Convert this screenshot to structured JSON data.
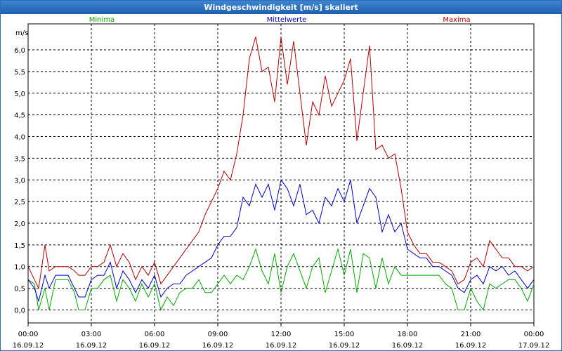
{
  "window": {
    "title": "Windgeschwindigkeit [m/s] skaliert"
  },
  "chart_data": {
    "type": "line",
    "title": "Windgeschwindigkeit [m/s] skaliert",
    "ylabel": "m/s",
    "xlabel": "",
    "ylim": [
      -0.3,
      6.6
    ],
    "xlim": [
      0,
      24
    ],
    "grid": true,
    "y_ticks": [
      {
        "value": 0.0,
        "label": "0,0"
      },
      {
        "value": 0.5,
        "label": "0,5"
      },
      {
        "value": 1.0,
        "label": "1,0"
      },
      {
        "value": 1.5,
        "label": "1,5"
      },
      {
        "value": 2.0,
        "label": "2,0"
      },
      {
        "value": 2.5,
        "label": "2,5"
      },
      {
        "value": 3.0,
        "label": "3,0"
      },
      {
        "value": 3.5,
        "label": "3,5"
      },
      {
        "value": 4.0,
        "label": "4,0"
      },
      {
        "value": 4.5,
        "label": "4,5"
      },
      {
        "value": 5.0,
        "label": "5,0"
      },
      {
        "value": 5.5,
        "label": "5,5"
      },
      {
        "value": 6.0,
        "label": "6,0"
      }
    ],
    "x_ticks": [
      {
        "value": 0,
        "time": "00:00",
        "date": "16.09.12"
      },
      {
        "value": 3,
        "time": "03:00",
        "date": "16.09.12"
      },
      {
        "value": 6,
        "time": "06:00",
        "date": "16.09.12"
      },
      {
        "value": 9,
        "time": "09:00",
        "date": "16.09.12"
      },
      {
        "value": 12,
        "time": "12:00",
        "date": "16.09.12"
      },
      {
        "value": 15,
        "time": "15:00",
        "date": "16.09.12"
      },
      {
        "value": 18,
        "time": "18:00",
        "date": "16.09.12"
      },
      {
        "value": 21,
        "time": "21:00",
        "date": "16.09.12"
      },
      {
        "value": 24,
        "time": "00:00",
        "date": "17.09.12"
      }
    ],
    "series": [
      {
        "name": "Minima",
        "color": "#00aa00",
        "legend_position": "left",
        "points": [
          [
            0,
            0.7
          ],
          [
            0.3,
            0.6
          ],
          [
            0.5,
            0.0
          ],
          [
            0.8,
            0.5
          ],
          [
            1.0,
            0.0
          ],
          [
            1.3,
            0.7
          ],
          [
            1.6,
            0.7
          ],
          [
            1.9,
            0.7
          ],
          [
            2.2,
            0.4
          ],
          [
            2.4,
            0.0
          ],
          [
            2.7,
            0.0
          ],
          [
            3.0,
            0.5
          ],
          [
            3.3,
            0.5
          ],
          [
            3.6,
            0.7
          ],
          [
            3.9,
            0.8
          ],
          [
            4.2,
            0.2
          ],
          [
            4.5,
            0.7
          ],
          [
            4.8,
            0.5
          ],
          [
            5.1,
            0.2
          ],
          [
            5.4,
            0.6
          ],
          [
            5.7,
            0.3
          ],
          [
            6.0,
            0.6
          ],
          [
            6.3,
            0.0
          ],
          [
            6.6,
            0.3
          ],
          [
            6.9,
            0.1
          ],
          [
            7.2,
            0.4
          ],
          [
            7.5,
            0.5
          ],
          [
            7.8,
            0.5
          ],
          [
            8.1,
            0.7
          ],
          [
            8.4,
            0.4
          ],
          [
            8.7,
            0.4
          ],
          [
            9.0,
            0.6
          ],
          [
            9.3,
            0.8
          ],
          [
            9.6,
            0.6
          ],
          [
            9.9,
            0.8
          ],
          [
            10.2,
            0.7
          ],
          [
            10.5,
            1.0
          ],
          [
            10.8,
            1.4
          ],
          [
            11.1,
            0.9
          ],
          [
            11.4,
            0.6
          ],
          [
            11.7,
            1.3
          ],
          [
            12.0,
            0.4
          ],
          [
            12.3,
            1.0
          ],
          [
            12.6,
            1.3
          ],
          [
            12.9,
            0.9
          ],
          [
            13.2,
            0.5
          ],
          [
            13.5,
            1.0
          ],
          [
            13.8,
            1.2
          ],
          [
            14.1,
            0.4
          ],
          [
            14.4,
            0.9
          ],
          [
            14.7,
            1.4
          ],
          [
            15.0,
            0.8
          ],
          [
            15.3,
            1.4
          ],
          [
            15.6,
            0.4
          ],
          [
            15.9,
            1.3
          ],
          [
            16.2,
            1.2
          ],
          [
            16.5,
            0.5
          ],
          [
            16.8,
            1.2
          ],
          [
            17.1,
            0.6
          ],
          [
            17.4,
            1.0
          ],
          [
            17.7,
            0.8
          ],
          [
            18.0,
            0.8
          ],
          [
            18.3,
            0.8
          ],
          [
            18.6,
            0.8
          ],
          [
            18.9,
            0.8
          ],
          [
            19.2,
            0.8
          ],
          [
            19.5,
            0.8
          ],
          [
            19.8,
            0.6
          ],
          [
            20.1,
            0.5
          ],
          [
            20.4,
            0.0
          ],
          [
            20.7,
            0.0
          ],
          [
            21.0,
            0.5
          ],
          [
            21.3,
            0.2
          ],
          [
            21.6,
            0.0
          ],
          [
            21.9,
            0.6
          ],
          [
            22.2,
            0.5
          ],
          [
            22.5,
            0.6
          ],
          [
            22.8,
            0.7
          ],
          [
            23.1,
            0.7
          ],
          [
            23.4,
            0.5
          ],
          [
            23.7,
            0.2
          ],
          [
            24.0,
            0.6
          ]
        ]
      },
      {
        "name": "Mittelwerte",
        "color": "#0000c8",
        "legend_position": "center",
        "points": [
          [
            0,
            0.7
          ],
          [
            0.3,
            0.5
          ],
          [
            0.5,
            0.2
          ],
          [
            0.8,
            0.8
          ],
          [
            1.0,
            0.5
          ],
          [
            1.3,
            0.8
          ],
          [
            1.6,
            0.8
          ],
          [
            1.9,
            0.8
          ],
          [
            2.2,
            0.5
          ],
          [
            2.4,
            0.3
          ],
          [
            2.7,
            0.3
          ],
          [
            3.0,
            0.7
          ],
          [
            3.3,
            0.8
          ],
          [
            3.6,
            0.8
          ],
          [
            3.9,
            1.1
          ],
          [
            4.2,
            0.5
          ],
          [
            4.5,
            0.9
          ],
          [
            4.8,
            0.7
          ],
          [
            5.1,
            0.4
          ],
          [
            5.4,
            0.7
          ],
          [
            5.7,
            0.5
          ],
          [
            6.0,
            0.8
          ],
          [
            6.3,
            0.3
          ],
          [
            6.6,
            0.5
          ],
          [
            6.9,
            0.6
          ],
          [
            7.2,
            0.6
          ],
          [
            7.5,
            0.8
          ],
          [
            7.8,
            0.9
          ],
          [
            8.1,
            1.0
          ],
          [
            8.4,
            1.1
          ],
          [
            8.7,
            1.2
          ],
          [
            9.0,
            1.5
          ],
          [
            9.3,
            1.7
          ],
          [
            9.6,
            1.7
          ],
          [
            9.9,
            1.9
          ],
          [
            10.2,
            2.6
          ],
          [
            10.5,
            2.4
          ],
          [
            10.8,
            2.9
          ],
          [
            11.1,
            2.6
          ],
          [
            11.4,
            2.9
          ],
          [
            11.7,
            2.3
          ],
          [
            12.0,
            3.0
          ],
          [
            12.3,
            2.8
          ],
          [
            12.6,
            2.4
          ],
          [
            12.9,
            2.9
          ],
          [
            13.2,
            2.2
          ],
          [
            13.5,
            2.3
          ],
          [
            13.8,
            2.0
          ],
          [
            14.1,
            2.6
          ],
          [
            14.4,
            2.4
          ],
          [
            14.7,
            2.8
          ],
          [
            15.0,
            2.5
          ],
          [
            15.3,
            3.0
          ],
          [
            15.6,
            2.0
          ],
          [
            15.9,
            2.4
          ],
          [
            16.2,
            2.8
          ],
          [
            16.5,
            2.6
          ],
          [
            16.8,
            1.8
          ],
          [
            17.1,
            2.2
          ],
          [
            17.4,
            1.8
          ],
          [
            17.7,
            2.0
          ],
          [
            18.0,
            1.4
          ],
          [
            18.3,
            1.3
          ],
          [
            18.6,
            1.2
          ],
          [
            18.9,
            1.2
          ],
          [
            19.2,
            1.0
          ],
          [
            19.5,
            1.0
          ],
          [
            19.8,
            0.9
          ],
          [
            20.1,
            0.8
          ],
          [
            20.4,
            0.5
          ],
          [
            20.7,
            0.4
          ],
          [
            21.0,
            0.7
          ],
          [
            21.3,
            0.8
          ],
          [
            21.6,
            0.6
          ],
          [
            21.9,
            1.0
          ],
          [
            22.2,
            0.9
          ],
          [
            22.5,
            1.0
          ],
          [
            22.8,
            0.8
          ],
          [
            23.1,
            0.9
          ],
          [
            23.4,
            0.7
          ],
          [
            23.7,
            0.5
          ],
          [
            24.0,
            0.7
          ]
        ]
      },
      {
        "name": "Maxima",
        "color": "#b40000",
        "legend_position": "right",
        "points": [
          [
            0,
            1.0
          ],
          [
            0.3,
            0.7
          ],
          [
            0.5,
            0.5
          ],
          [
            0.8,
            1.5
          ],
          [
            1.0,
            0.9
          ],
          [
            1.3,
            1.0
          ],
          [
            1.6,
            1.0
          ],
          [
            1.9,
            1.0
          ],
          [
            2.2,
            0.9
          ],
          [
            2.4,
            0.8
          ],
          [
            2.7,
            0.8
          ],
          [
            3.0,
            1.0
          ],
          [
            3.3,
            1.0
          ],
          [
            3.6,
            1.1
          ],
          [
            3.9,
            1.5
          ],
          [
            4.2,
            1.0
          ],
          [
            4.5,
            1.3
          ],
          [
            4.8,
            1.1
          ],
          [
            5.1,
            0.7
          ],
          [
            5.4,
            1.0
          ],
          [
            5.7,
            0.8
          ],
          [
            6.0,
            1.1
          ],
          [
            6.3,
            0.6
          ],
          [
            6.6,
            0.8
          ],
          [
            6.9,
            1.0
          ],
          [
            7.2,
            1.2
          ],
          [
            7.5,
            1.4
          ],
          [
            7.8,
            1.6
          ],
          [
            8.1,
            1.8
          ],
          [
            8.4,
            2.2
          ],
          [
            8.7,
            2.5
          ],
          [
            9.0,
            2.8
          ],
          [
            9.3,
            3.2
          ],
          [
            9.6,
            3.0
          ],
          [
            9.9,
            3.6
          ],
          [
            10.2,
            4.5
          ],
          [
            10.5,
            5.8
          ],
          [
            10.8,
            6.3
          ],
          [
            11.1,
            5.5
          ],
          [
            11.4,
            5.6
          ],
          [
            11.7,
            4.8
          ],
          [
            12.0,
            6.3
          ],
          [
            12.3,
            5.2
          ],
          [
            12.6,
            6.2
          ],
          [
            12.9,
            5.0
          ],
          [
            13.2,
            3.8
          ],
          [
            13.5,
            4.8
          ],
          [
            13.8,
            4.5
          ],
          [
            14.1,
            5.4
          ],
          [
            14.4,
            4.7
          ],
          [
            14.7,
            5.0
          ],
          [
            15.0,
            5.3
          ],
          [
            15.3,
            5.8
          ],
          [
            15.6,
            3.9
          ],
          [
            15.9,
            5.0
          ],
          [
            16.2,
            6.1
          ],
          [
            16.5,
            3.7
          ],
          [
            16.8,
            3.8
          ],
          [
            17.1,
            3.5
          ],
          [
            17.4,
            3.6
          ],
          [
            17.7,
            2.8
          ],
          [
            18.0,
            1.8
          ],
          [
            18.3,
            1.5
          ],
          [
            18.6,
            1.3
          ],
          [
            18.9,
            1.3
          ],
          [
            19.2,
            1.1
          ],
          [
            19.5,
            1.1
          ],
          [
            19.8,
            1.0
          ],
          [
            20.1,
            0.9
          ],
          [
            20.4,
            0.6
          ],
          [
            20.7,
            0.7
          ],
          [
            21.0,
            1.1
          ],
          [
            21.3,
            1.2
          ],
          [
            21.6,
            1.0
          ],
          [
            21.9,
            1.6
          ],
          [
            22.2,
            1.4
          ],
          [
            22.5,
            1.2
          ],
          [
            22.8,
            1.2
          ],
          [
            23.1,
            1.0
          ],
          [
            23.4,
            1.0
          ],
          [
            23.7,
            0.9
          ],
          [
            24.0,
            1.0
          ]
        ]
      }
    ]
  }
}
